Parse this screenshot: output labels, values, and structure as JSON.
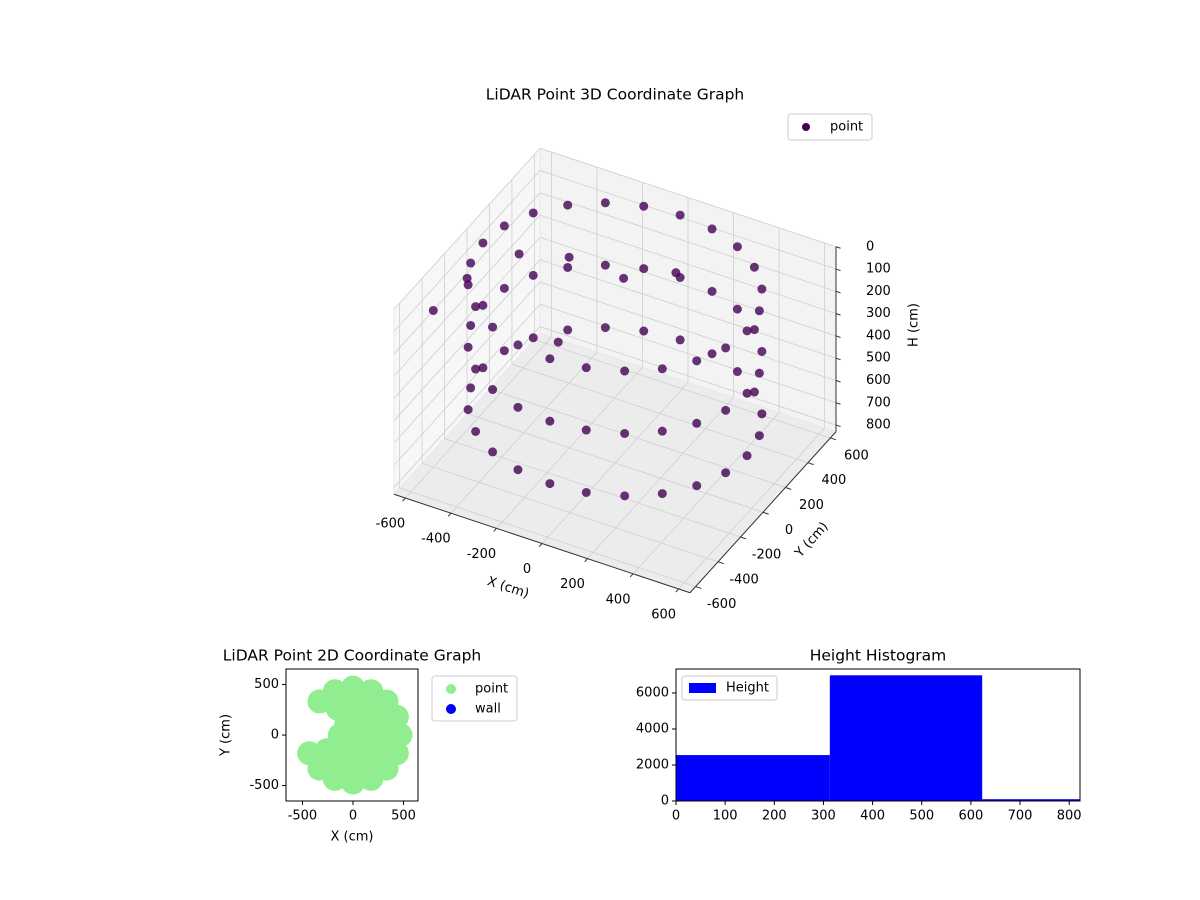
{
  "chart_data": [
    {
      "type": "scatter3d",
      "title": "LiDAR Point 3D Coordinate Graph",
      "xlabel": "X (cm)",
      "ylabel": "Y (cm)",
      "zlabel": "H (cm)",
      "xlim": [
        -650,
        650
      ],
      "ylim": [
        -650,
        650
      ],
      "zlim": [
        0,
        830
      ],
      "z_inverted": true,
      "xticks": [
        -600,
        -400,
        -200,
        0,
        200,
        400,
        600
      ],
      "yticks": [
        -600,
        -400,
        -200,
        0,
        200,
        400,
        600
      ],
      "zticks": [
        0,
        100,
        200,
        300,
        400,
        500,
        600,
        700,
        800
      ],
      "grid": true,
      "legend": "upper right",
      "series": [
        {
          "name": "point",
          "color": "#440154",
          "x": [
            580,
            560,
            502,
            410,
            290,
            150,
            0,
            -150,
            -290,
            -410,
            -502,
            -560,
            -580,
            -560,
            -502,
            -410,
            -290,
            -150,
            0,
            150,
            290,
            410,
            502,
            560,
            580,
            560,
            502,
            410,
            290,
            150,
            0,
            -150,
            -290,
            -410,
            -502,
            -560,
            -580,
            -560,
            -502,
            -410,
            -290,
            -150,
            0,
            150,
            290,
            410,
            502,
            560,
            580,
            560,
            502,
            410,
            290,
            150,
            0,
            -150,
            -290,
            -410,
            -502,
            -560,
            -580,
            -560,
            -502,
            -410,
            -290,
            -150,
            0,
            150,
            290,
            410,
            502,
            560,
            -650,
            -600,
            -520,
            -300,
            -120,
            80,
            -200
          ],
          "y": [
            0,
            150,
            290,
            410,
            502,
            560,
            580,
            560,
            502,
            410,
            290,
            150,
            0,
            -150,
            -290,
            -410,
            -502,
            -560,
            -580,
            -560,
            -502,
            -410,
            -290,
            -150,
            0,
            150,
            290,
            410,
            502,
            560,
            580,
            560,
            502,
            410,
            290,
            150,
            0,
            -150,
            -290,
            -410,
            -502,
            -560,
            -580,
            -560,
            -502,
            -410,
            -290,
            -150,
            0,
            150,
            290,
            410,
            502,
            560,
            580,
            560,
            502,
            410,
            290,
            150,
            0,
            -150,
            -290,
            -410,
            -502,
            -560,
            -580,
            -560,
            -502,
            -410,
            -290,
            -150,
            -300,
            -100,
            200,
            200,
            320,
            380,
            -100
          ],
          "z": [
            40,
            40,
            40,
            40,
            40,
            40,
            40,
            40,
            40,
            40,
            40,
            40,
            40,
            40,
            40,
            40,
            40,
            40,
            40,
            40,
            40,
            40,
            40,
            40,
            320,
            320,
            320,
            320,
            320,
            320,
            320,
            320,
            320,
            320,
            320,
            320,
            320,
            320,
            320,
            320,
            320,
            320,
            320,
            320,
            320,
            320,
            320,
            320,
            600,
            600,
            600,
            600,
            600,
            600,
            600,
            600,
            600,
            600,
            600,
            600,
            600,
            600,
            600,
            600,
            600,
            600,
            600,
            600,
            600,
            600,
            600,
            600,
            200,
            150,
            180,
            120,
            220,
            160,
            300
          ]
        }
      ]
    },
    {
      "type": "scatter",
      "title": "LiDAR Point 2D Coordinate Graph",
      "xlabel": "X (cm)",
      "ylabel": "Y (cm)",
      "xlim": [
        -663,
        643
      ],
      "ylim": [
        -653,
        654
      ],
      "xticks": [
        -500,
        0,
        500
      ],
      "yticks": [
        -500,
        0,
        500
      ],
      "legend": "outside right",
      "series": [
        {
          "name": "point",
          "color": "#90ee90",
          "x": [
            470,
            434,
            332,
            180,
            0,
            -180,
            -332,
            -434,
            -332,
            -180,
            0,
            180,
            332,
            434,
            300,
            260,
            150,
            0,
            -150,
            -260,
            -150,
            0,
            150,
            260,
            130,
            65,
            -65,
            -130,
            -65,
            65,
            0
          ],
          "y": [
            0,
            180,
            332,
            434,
            470,
            434,
            332,
            -180,
            -332,
            -434,
            -470,
            -434,
            -332,
            -180,
            0,
            150,
            260,
            300,
            260,
            -150,
            -260,
            -300,
            -260,
            -150,
            0,
            113,
            113,
            0,
            -113,
            -113,
            0
          ]
        },
        {
          "name": "wall",
          "color": "#0000ff",
          "x": [],
          "y": []
        }
      ]
    },
    {
      "type": "histogram",
      "title": "Height Histogram",
      "name": "Height",
      "color": "#0000ff",
      "bins": [
        0,
        313,
        623,
        934
      ],
      "counts": [
        2550,
        6980,
        100
      ],
      "xlim": [
        0,
        822
      ],
      "ylim": [
        0,
        7330
      ],
      "xticks": [
        0,
        100,
        200,
        300,
        400,
        500,
        600,
        700,
        800
      ],
      "yticks": [
        0,
        2000,
        4000,
        6000
      ],
      "legend": "upper left"
    }
  ]
}
